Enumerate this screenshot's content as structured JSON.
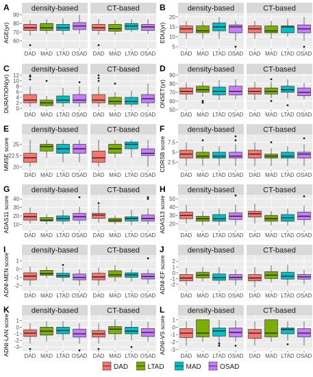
{
  "figure": {
    "legend": {
      "items": [
        {
          "label": "DAD",
          "color": "#F8766D"
        },
        {
          "label": "LTAD",
          "color": "#7CAE00"
        },
        {
          "label": "MAD",
          "color": "#00BFC4"
        },
        {
          "label": "OSAD",
          "color": "#C77CFF"
        }
      ]
    }
  },
  "chart_data": [
    {
      "letter": "A",
      "type": "box",
      "ylabel": "AGE(yr)",
      "ylim": [
        51,
        92
      ],
      "yticks": [
        60,
        70,
        80,
        90
      ],
      "categories": [
        "DAD",
        "MAD",
        "LTAD",
        "OSAD"
      ],
      "facets": [
        "density-based",
        "CT-based"
      ],
      "boxes": [
        [
          [
            66,
            72,
            75,
            79,
            84,
            [
              55
            ]
          ],
          [
            68,
            72,
            75,
            80,
            85,
            []
          ],
          [
            67,
            72,
            75,
            79,
            86,
            []
          ],
          [
            68,
            73,
            77,
            81,
            90,
            []
          ]
        ],
        [
          [
            67,
            72,
            75,
            79,
            85,
            [
              55
            ]
          ],
          [
            67,
            71,
            74,
            79,
            84,
            []
          ],
          [
            70,
            73,
            77,
            80,
            85,
            []
          ],
          [
            68,
            72,
            76,
            79,
            85,
            []
          ]
        ]
      ]
    },
    {
      "letter": "B",
      "type": "box",
      "ylabel": "EDU(yr)",
      "ylim": [
        4,
        22
      ],
      "yticks": [
        5,
        10,
        15,
        20
      ],
      "categories": [
        "DAD",
        "MAD",
        "LTAD",
        "OSAD"
      ],
      "facets": [
        "density-based",
        "CT-based"
      ],
      "boxes": [
        [
          [
            9,
            12,
            14,
            15.5,
            18,
            []
          ],
          [
            9,
            12,
            13,
            15.5,
            18,
            []
          ],
          [
            9,
            13,
            15,
            17,
            20,
            []
          ],
          [
            8,
            12,
            15,
            16,
            18,
            [
              5
            ]
          ]
        ],
        [
          [
            9,
            12,
            14,
            15.5,
            18,
            []
          ],
          [
            9,
            12,
            13,
            15.5,
            18,
            []
          ],
          [
            10,
            12,
            15,
            15.5,
            19,
            []
          ],
          [
            8,
            12,
            14,
            16,
            20,
            [
              5
            ]
          ]
        ]
      ]
    },
    {
      "letter": "C",
      "type": "box",
      "ylabel": "DURATION(yr)",
      "ylim": [
        -0.5,
        12.5
      ],
      "yticks": [
        0,
        2,
        4,
        6,
        8,
        10,
        12
      ],
      "categories": [
        "DAD",
        "MAD",
        "LTAD",
        "OSAD"
      ],
      "facets": [
        "density-based",
        "CT-based"
      ],
      "boxes": [
        [
          [
            0.5,
            2,
            3,
            5,
            8,
            [
              10.5,
              11.5,
              12
            ]
          ],
          [
            0.5,
            1,
            2,
            3,
            4.5,
            [
              10
            ]
          ],
          [
            0.5,
            2,
            3,
            4.5,
            7.5,
            []
          ],
          [
            0.5,
            2,
            3,
            5,
            8,
            [
              9.5
            ]
          ]
        ],
        [
          [
            0.5,
            2,
            3,
            5,
            8,
            [
              10,
              11,
              12
            ]
          ],
          [
            0.5,
            1.5,
            2.5,
            4,
            6,
            [
              9
            ]
          ],
          [
            0.5,
            1.5,
            2.5,
            4,
            6.5,
            []
          ],
          [
            0.5,
            2,
            3.5,
            5,
            9,
            []
          ]
        ]
      ]
    },
    {
      "letter": "D",
      "type": "box",
      "ylabel": "ONSET(yr)",
      "ylim": [
        50,
        91
      ],
      "yticks": [
        50,
        60,
        70,
        80,
        90
      ],
      "categories": [
        "DAD",
        "MAD",
        "LTAD",
        "OSAD"
      ],
      "facets": [
        "density-based",
        "CT-based"
      ],
      "boxes": [
        [
          [
            61,
            68,
            71,
            75,
            81,
            []
          ],
          [
            65,
            70,
            73,
            77,
            82,
            [
              58,
              60
            ]
          ],
          [
            61,
            67,
            71,
            76,
            84,
            []
          ],
          [
            62,
            67,
            71,
            77,
            85,
            []
          ]
        ],
        [
          [
            61,
            68,
            71,
            75,
            82,
            []
          ],
          [
            63,
            68,
            71,
            75,
            82,
            [
              60,
              85
            ]
          ],
          [
            63,
            70,
            73,
            77,
            85,
            [
              55
            ]
          ],
          [
            62,
            66,
            70,
            75,
            81,
            []
          ]
        ]
      ]
    },
    {
      "letter": "E",
      "type": "box",
      "ylabel": "MMSE score",
      "ylim": [
        19.3,
        27.2
      ],
      "yticks": [
        20.0,
        22.5,
        25.0
      ],
      "categories": [
        "DAD",
        "MAD",
        "LTAD",
        "OSAD"
      ],
      "facets": [
        "density-based",
        "CT-based"
      ],
      "boxes": [
        [
          [
            20,
            21,
            22,
            23,
            26,
            []
          ],
          [
            22,
            23.5,
            24.5,
            25,
            26,
            []
          ],
          [
            21,
            23,
            24,
            25,
            26,
            []
          ],
          [
            21,
            23,
            24,
            25,
            26,
            []
          ]
        ],
        [
          [
            20,
            21,
            22,
            23.5,
            26,
            []
          ],
          [
            22,
            23,
            24,
            25,
            26,
            []
          ],
          [
            22,
            24,
            25,
            25.5,
            26,
            []
          ],
          [
            20,
            22.5,
            23,
            24,
            26,
            []
          ]
        ]
      ]
    },
    {
      "letter": "F",
      "type": "box",
      "ylabel": "CDRSB score",
      "ylim": [
        0.5,
        9.5
      ],
      "yticks": [
        2.5,
        5.0,
        7.5
      ],
      "categories": [
        "DAD",
        "MAD",
        "LTAD",
        "OSAD"
      ],
      "facets": [
        "density-based",
        "CT-based"
      ],
      "boxes": [
        [
          [
            1.5,
            3.5,
            4.5,
            5.5,
            7.5,
            []
          ],
          [
            1.5,
            3.5,
            4,
            5,
            6.5,
            [
              8
            ]
          ],
          [
            1.5,
            3.5,
            4,
            5,
            6.5,
            []
          ],
          [
            1.5,
            3.5,
            4,
            5,
            7,
            [
              8,
              9
            ]
          ]
        ],
        [
          [
            1.5,
            3.5,
            4.5,
            5.5,
            7.5,
            []
          ],
          [
            1.5,
            3.5,
            4,
            4.5,
            6,
            [
              7.5
            ]
          ],
          [
            1.5,
            3.5,
            4,
            5,
            6.5,
            []
          ],
          [
            1.5,
            3.5,
            4.5,
            5,
            7,
            [
              8.5
            ]
          ]
        ]
      ]
    },
    {
      "letter": "G",
      "type": "box",
      "ylabel": "ADAS11 score",
      "ylim": [
        3,
        45
      ],
      "yticks": [
        10,
        20,
        30,
        40
      ],
      "categories": [
        "DAD",
        "MAD",
        "LTAD",
        "OSAD"
      ],
      "facets": [
        "density-based",
        "CT-based"
      ],
      "boxes": [
        [
          [
            11,
            15,
            19,
            23,
            30,
            []
          ],
          [
            10,
            14,
            15,
            18,
            22,
            []
          ],
          [
            10,
            14,
            17,
            20,
            27,
            []
          ],
          [
            10,
            15,
            19,
            23,
            31,
            [
              42
            ]
          ]
        ],
        [
          [
            12,
            17,
            21,
            23,
            33,
            [
              35
            ]
          ],
          [
            10,
            13,
            15,
            17,
            21,
            []
          ],
          [
            9,
            14,
            17,
            19,
            27,
            []
          ],
          [
            10,
            14,
            17,
            21,
            29,
            [
              40,
              42
            ]
          ]
        ]
      ]
    },
    {
      "letter": "H",
      "type": "box",
      "ylabel": "ADAS13 score",
      "ylim": [
        12,
        55
      ],
      "yticks": [
        20,
        30,
        40,
        50
      ],
      "categories": [
        "DAD",
        "MAD",
        "LTAD",
        "OSAD"
      ],
      "facets": [
        "density-based",
        "CT-based"
      ],
      "boxes": [
        [
          [
            20,
            26,
            30,
            34,
            43,
            []
          ],
          [
            18,
            23,
            26,
            29,
            35,
            []
          ],
          [
            18,
            23,
            26,
            31,
            38,
            []
          ],
          [
            18,
            25,
            29,
            33,
            43,
            [
              54
            ]
          ]
        ],
        [
          [
            20,
            28,
            32,
            35,
            44,
            []
          ],
          [
            18,
            23,
            26,
            30,
            35,
            []
          ],
          [
            18,
            23,
            27,
            31,
            38,
            []
          ],
          [
            18,
            25,
            29,
            34,
            42,
            [
              53
            ]
          ]
        ]
      ]
    },
    {
      "letter": "I",
      "type": "box",
      "ylabel": "ADNI-MEN score",
      "ylim": [
        -2.6,
        1.7
      ],
      "yticks": [
        -2,
        -1,
        0,
        1
      ],
      "categories": [
        "DAD",
        "MAD",
        "LTAD",
        "OSAD"
      ],
      "facets": [
        "density-based",
        "CT-based"
      ],
      "boxes": [
        [
          [
            -2,
            -1.3,
            -0.85,
            -0.45,
            0.3,
            []
          ],
          [
            -1.1,
            -0.75,
            -0.55,
            -0.15,
            0.3,
            []
          ],
          [
            -1.5,
            -1,
            -0.8,
            -0.5,
            0.2,
            [
              0.5
            ]
          ],
          [
            -2,
            -1.3,
            -1,
            -0.6,
            0,
            []
          ]
        ],
        [
          [
            -2,
            -1.3,
            -0.95,
            -0.5,
            0.2,
            []
          ],
          [
            -1.5,
            -0.95,
            -0.7,
            -0.2,
            0.5,
            []
          ],
          [
            -1.5,
            -1,
            -0.7,
            -0.45,
            0,
            []
          ],
          [
            -1.8,
            -1.2,
            -0.9,
            -0.55,
            0,
            [
              1.3
            ]
          ]
        ]
      ]
    },
    {
      "letter": "J",
      "type": "box",
      "ylabel": "ADNI-EF score",
      "ylim": [
        -3.1,
        3.1
      ],
      "yticks": [
        -2,
        -1,
        0,
        1,
        2
      ],
      "categories": [
        "DAD",
        "MAD",
        "LTAD",
        "OSAD"
      ],
      "facets": [
        "density-based",
        "CT-based"
      ],
      "boxes": [
        [
          [
            -2.2,
            -1.4,
            -0.9,
            -0.3,
            0.9,
            []
          ],
          [
            -1.5,
            -0.9,
            -0.4,
            0.1,
            1,
            []
          ],
          [
            -2,
            -1.3,
            -0.85,
            -0.2,
            1,
            []
          ],
          [
            -2.2,
            -1.2,
            -0.8,
            -0.3,
            0.6,
            []
          ]
        ],
        [
          [
            -2.5,
            -1.4,
            -0.9,
            -0.3,
            1,
            []
          ],
          [
            -1.7,
            -1,
            -0.4,
            0.2,
            1.3,
            []
          ],
          [
            -2.2,
            -1.1,
            -0.6,
            0.1,
            1.4,
            []
          ],
          [
            -2,
            -1.1,
            -0.7,
            -0.3,
            0.5,
            []
          ]
        ]
      ]
    },
    {
      "letter": "K",
      "type": "box",
      "ylabel": "ADNI-LAN score",
      "ylim": [
        -3.6,
        1.8
      ],
      "yticks": [
        -3,
        -2,
        -1,
        0,
        1
      ],
      "categories": [
        "DAD",
        "MAD",
        "LTAD",
        "OSAD"
      ],
      "facets": [
        "density-based",
        "CT-based"
      ],
      "boxes": [
        [
          [
            -2.5,
            -1.4,
            -0.9,
            -0.4,
            0.6,
            [
              -3.3
            ]
          ],
          [
            -2.2,
            -1.2,
            -0.6,
            0,
            0.9,
            []
          ],
          [
            -2,
            -1,
            -0.5,
            0,
            0.9,
            []
          ],
          [
            -2.5,
            -1.5,
            -1,
            -0.3,
            0.6,
            [
              -3.5
            ]
          ]
        ],
        [
          [
            -2.5,
            -1.5,
            -1,
            -0.5,
            0.6,
            [
              -3.3
            ]
          ],
          [
            -2,
            -1,
            -0.3,
            0.1,
            1.2,
            []
          ],
          [
            -2,
            -1,
            -0.6,
            0,
            1,
            [
              -3
            ]
          ],
          [
            -2.2,
            -1.4,
            -0.8,
            -0.2,
            0.8,
            []
          ]
        ]
      ]
    },
    {
      "letter": "L",
      "type": "box",
      "ylabel": "ADNI-VS score",
      "ylim": [
        -3.2,
        1.6
      ],
      "yticks": [
        -3,
        -2,
        -1,
        0,
        1
      ],
      "categories": [
        "DAD",
        "MAD",
        "LTAD",
        "OSAD"
      ],
      "facets": [
        "density-based",
        "CT-based"
      ],
      "boxes": [
        [
          [
            -2.5,
            -1.4,
            -0.8,
            -0.2,
            0.8,
            []
          ],
          [
            -2,
            -1.3,
            -0.8,
            1,
            1,
            []
          ],
          [
            -2.5,
            -1.2,
            -0.5,
            -0.1,
            1,
            [
              -2.2,
              -2.5
            ]
          ],
          [
            -2,
            -1.3,
            -0.7,
            -0.1,
            0.9,
            [
              -2.5
            ]
          ]
        ],
        [
          [
            -2.5,
            -1.5,
            -0.8,
            -0.3,
            0.8,
            []
          ],
          [
            -2,
            -1.3,
            -0.8,
            1,
            1,
            []
          ],
          [
            -1.8,
            -0.9,
            -0.3,
            -0.1,
            0.8,
            [
              -2.3
            ]
          ],
          [
            -2.5,
            -1.3,
            -0.8,
            -0.2,
            0.8,
            []
          ]
        ]
      ]
    }
  ]
}
